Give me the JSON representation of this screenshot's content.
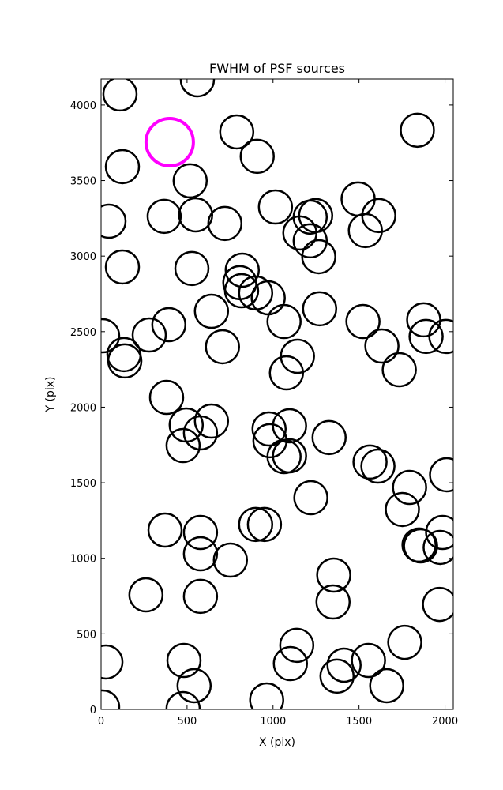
{
  "chart_data": {
    "type": "scatter",
    "title": "FWHM of PSF sources",
    "x_label": "X (pix)",
    "y_label": "Y (pix)",
    "xlim": [
      0,
      2048
    ],
    "ylim": [
      0,
      4172
    ],
    "xticks": [
      0,
      500,
      1000,
      1500,
      2000
    ],
    "yticks": [
      0,
      500,
      1000,
      1500,
      2000,
      2500,
      3000,
      3500,
      4000
    ],
    "series": [
      {
        "color": "#000000",
        "x": [
          110,
          560,
          789,
          1839,
          124,
          908,
          518,
          46,
          367,
          550,
          720,
          1014,
          1495,
          1537,
          1615,
          1156,
          1216,
          1248,
          1216,
          1266,
          124,
          528,
          821,
          807,
          817,
          899,
          972,
          1271,
          642,
          9,
          280,
          394,
          1064,
          1523,
          1876,
          1890,
          2005,
          133,
          138,
          706,
          1142,
          1078,
          1633,
          1734,
          381,
          495,
          642,
          578,
          477,
          977,
          982,
          1096,
          1064,
          1096,
          1326,
          1564,
          1610,
          2009,
          1794,
          1220,
          1752,
          372,
          578,
          578,
          899,
          950,
          752,
          1849,
          1858,
          1986,
          1972,
          261,
          578,
          1353,
          1349,
          1968,
          28,
          482,
          541,
          477,
          963,
          1138,
          1101,
          1413,
          1372,
          1555,
          1766,
          1661,
          9
        ],
        "y": [
          4073,
          4167,
          3822,
          3833,
          3592,
          3660,
          3498,
          3231,
          3263,
          3273,
          3216,
          3325,
          3378,
          3169,
          3268,
          3153,
          3258,
          3268,
          3101,
          2996,
          2928,
          2918,
          2907,
          2824,
          2771,
          2756,
          2724,
          2651,
          2635,
          2473,
          2478,
          2546,
          2567,
          2567,
          2578,
          2468,
          2468,
          2348,
          2306,
          2400,
          2337,
          2227,
          2405,
          2248,
          2065,
          1882,
          1908,
          1830,
          1746,
          1856,
          1778,
          1877,
          1673,
          1678,
          1799,
          1637,
          1610,
          1553,
          1469,
          1401,
          1323,
          1187,
          1171,
          1030,
          1224,
          1224,
          988,
          1088,
          1082,
          1171,
          1072,
          758,
          748,
          889,
          711,
          695,
          314,
          324,
          157,
          5,
          63,
          424,
          303,
          293,
          220,
          324,
          444,
          157,
          16
        ]
      },
      {
        "color": "#ff00ff",
        "x": [
          399
        ],
        "y": [
          3754
        ]
      }
    ]
  }
}
